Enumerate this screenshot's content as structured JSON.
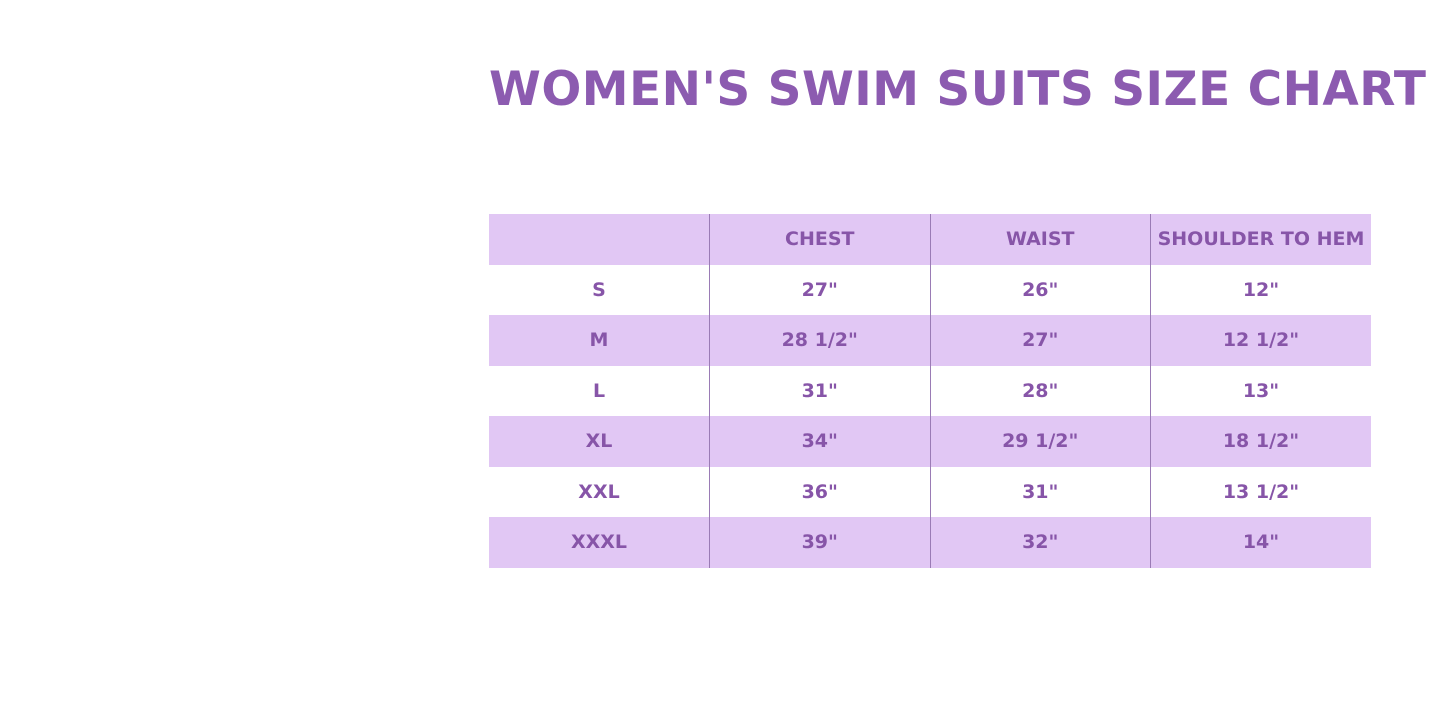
{
  "title": "WOMEN'S SWIM SUITS SIZE CHART",
  "colors": {
    "title": "#8c5bb0",
    "text": "#8755a8",
    "shade": "#e1c7f4",
    "border": "#9a7bb5"
  },
  "table": {
    "headers": [
      "",
      "CHEST",
      "WAIST",
      "SHOULDER TO HEM"
    ],
    "rows": [
      [
        "S",
        "27\"",
        "26\"",
        "12\""
      ],
      [
        "M",
        "28 1/2\"",
        "27\"",
        "12 1/2\""
      ],
      [
        "L",
        "31\"",
        "28\"",
        "13\""
      ],
      [
        "XL",
        "34\"",
        "29 1/2\"",
        "18 1/2\""
      ],
      [
        "XXL",
        "36\"",
        "31\"",
        "13 1/2\""
      ],
      [
        "XXXL",
        "39\"",
        "32\"",
        "14\""
      ]
    ]
  }
}
